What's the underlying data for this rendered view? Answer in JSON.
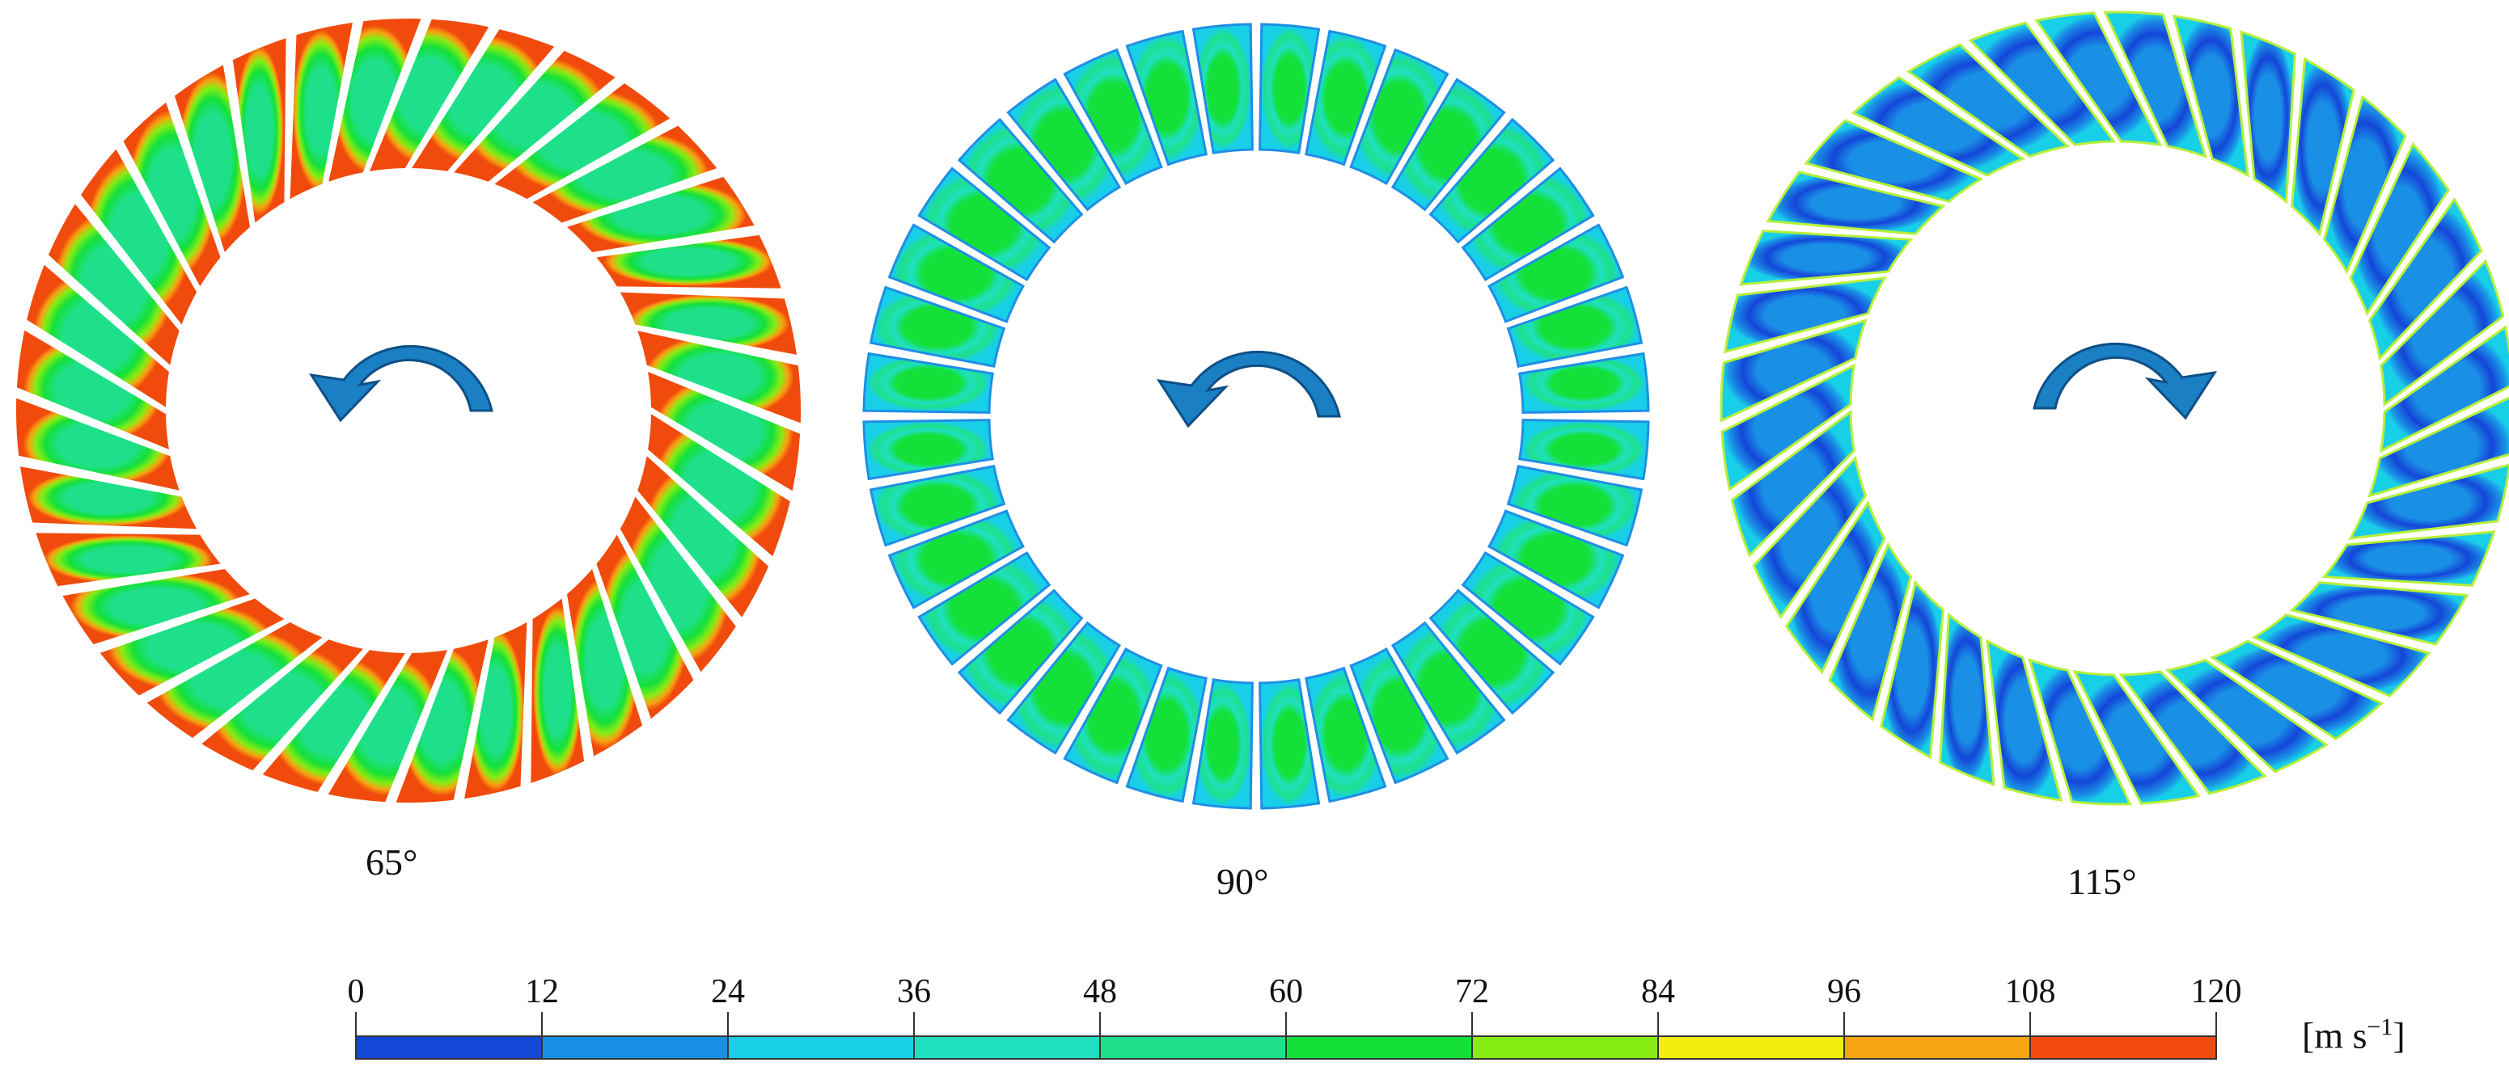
{
  "rotors": [
    {
      "label": "65°",
      "direction": "counterclockwise",
      "level_scheme": "high"
    },
    {
      "label": "90°",
      "direction": "counterclockwise",
      "level_scheme": "mid"
    },
    {
      "label": "115°",
      "direction": "clockwise",
      "level_scheme": "low"
    }
  ],
  "blade_count": 36,
  "legend": {
    "ticks": [
      "0",
      "12",
      "24",
      "36",
      "48",
      "60",
      "72",
      "84",
      "96",
      "108",
      "120"
    ],
    "colors": [
      "#1446d8",
      "#1a8fe6",
      "#18cfe8",
      "#1ee0c0",
      "#1ee08a",
      "#14e03a",
      "#86ec14",
      "#f4ee10",
      "#f6a412",
      "#f04a0c"
    ],
    "unit_main": "[m s",
    "unit_sup": "−1",
    "unit_close": "]"
  },
  "colors": {
    "arrow_fill": "#1b7fc4",
    "arrow_edge": "#0e4f86",
    "blade_gap": "#ffffff"
  }
}
